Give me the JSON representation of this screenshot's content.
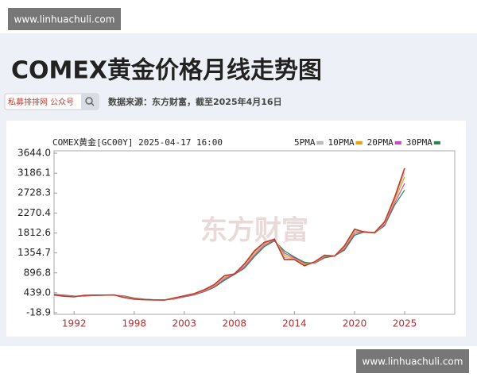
{
  "chart_data": {
    "type": "line",
    "title": "COMEX黄金价格月线走势图",
    "search_box": "私募排排网 公众号",
    "subtitle": "数据来源：东方财富，截至2025年4月16日",
    "chart_label": "COMEX黄金[GC00Y]  2025-04-17 16:00",
    "watermark": "东方财富",
    "site_labels": [
      "www.linhuachuli.com",
      "www.linhuachuli.com"
    ],
    "x": [
      1990,
      1991,
      1992,
      1993,
      1994,
      1995,
      1996,
      1997,
      1998,
      1999,
      2000,
      2001,
      2002,
      2003,
      2004,
      2005,
      2006,
      2007,
      2008,
      2009,
      2010,
      2011,
      2012,
      2013,
      2014,
      2015,
      2016,
      2017,
      2018,
      2019,
      2020,
      2021,
      2022,
      2023,
      2024,
      2025
    ],
    "xlim": [
      1990,
      2030
    ],
    "xticks": [
      1992,
      1998,
      2003,
      2008,
      2014,
      2020,
      2025
    ],
    "ylim": [
      -18.9,
      3644
    ],
    "yticks": [
      {
        "value": 3644,
        "label": "3644.0"
      },
      3186.1,
      2728.3,
      2270.4,
      1812.6,
      1354.7,
      896.8,
      {
        "value": 439,
        "label": "439.0"
      },
      -18.9
    ],
    "grid": false,
    "price_color": "#c0392b",
    "price": [
      390,
      360,
      345,
      380,
      385,
      385,
      390,
      330,
      290,
      280,
      275,
      270,
      320,
      370,
      420,
      510,
      630,
      830,
      870,
      1100,
      1400,
      1600,
      1670,
      1200,
      1200,
      1060,
      1150,
      1300,
      1280,
      1520,
      1900,
      1830,
      1820,
      2070,
      2630,
      3300
    ],
    "series": [
      {
        "name": "5PMA",
        "color": "#bbbbbb",
        "values": [
          392,
          365,
          350,
          375,
          384,
          386,
          388,
          340,
          295,
          282,
          276,
          272,
          315,
          365,
          415,
          500,
          615,
          800,
          880,
          1080,
          1370,
          1580,
          1680,
          1250,
          1210,
          1080,
          1140,
          1290,
          1285,
          1500,
          1870,
          1840,
          1815,
          2050,
          2600,
          3200
        ]
      },
      {
        "name": "10PMA",
        "color": "#e8a800",
        "values": [
          395,
          370,
          355,
          370,
          383,
          386,
          387,
          350,
          300,
          285,
          277,
          273,
          308,
          360,
          410,
          490,
          600,
          780,
          880,
          1060,
          1340,
          1560,
          1670,
          1300,
          1220,
          1100,
          1130,
          1280,
          1290,
          1480,
          1840,
          1850,
          1810,
          2030,
          2560,
          3100
        ]
      },
      {
        "name": "20PMA",
        "color": "#cc44cc",
        "values": [
          400,
          378,
          360,
          365,
          380,
          385,
          386,
          360,
          310,
          288,
          279,
          274,
          300,
          350,
          400,
          475,
          580,
          750,
          870,
          1030,
          1300,
          1530,
          1650,
          1350,
          1240,
          1120,
          1120,
          1260,
          1290,
          1450,
          1800,
          1850,
          1810,
          2000,
          2500,
          2950
        ]
      },
      {
        "name": "30PMA",
        "color": "#228844",
        "values": [
          405,
          385,
          365,
          362,
          378,
          384,
          385,
          365,
          318,
          292,
          280,
          275,
          295,
          343,
          392,
          465,
          565,
          725,
          860,
          1000,
          1270,
          1500,
          1630,
          1400,
          1260,
          1140,
          1115,
          1240,
          1285,
          1420,
          1760,
          1840,
          1810,
          1980,
          2450,
          2800
        ]
      }
    ]
  }
}
